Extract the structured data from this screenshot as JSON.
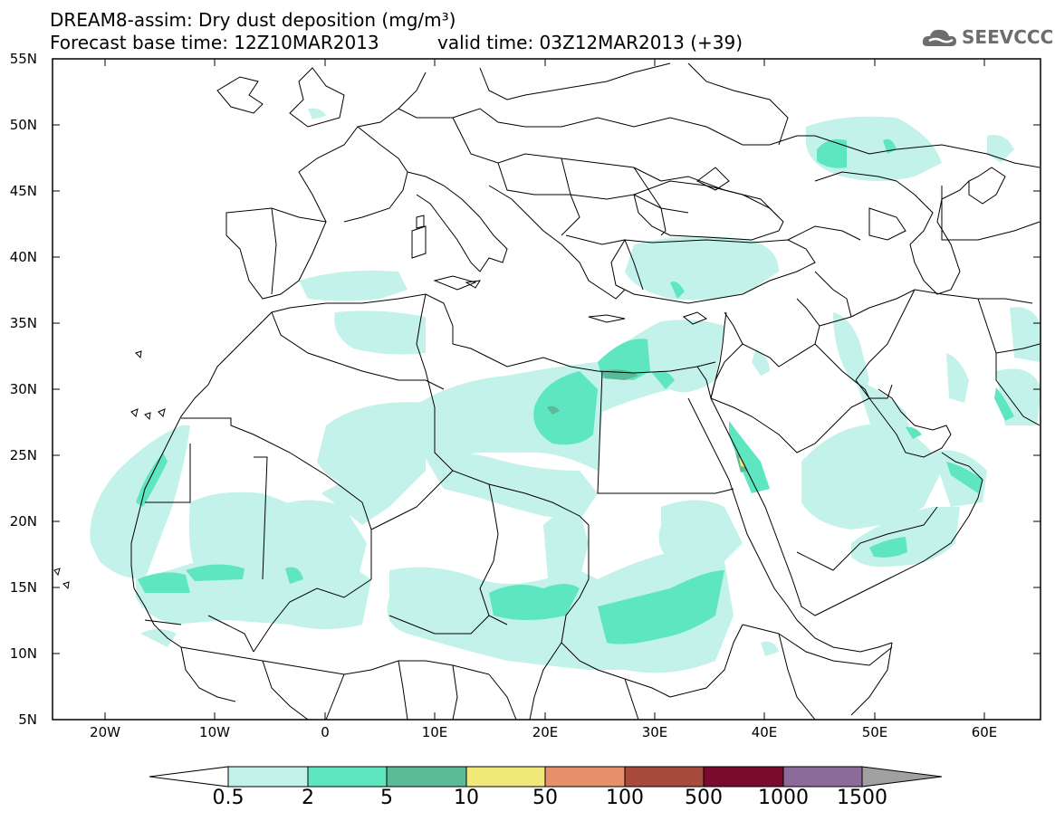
{
  "title": {
    "line1": "DREAM8-assim: Dry dust deposition (mg/m³)",
    "line2": "Forecast base time: 12Z10MAR2013",
    "valid": "valid time: 03Z12MAR2013 (+39)"
  },
  "logo": {
    "text": "SEEVCCC",
    "icon": "cloud-logo-icon"
  },
  "axes": {
    "lat_labels": [
      "55N",
      "50N",
      "45N",
      "40N",
      "35N",
      "30N",
      "25N",
      "20N",
      "15N",
      "10N",
      "5N"
    ],
    "lon_labels": [
      "20W",
      "10W",
      "0",
      "10E",
      "20E",
      "30E",
      "40E",
      "50E",
      "60E"
    ]
  },
  "colorbar": {
    "labels": [
      "0.5",
      "2",
      "5",
      "10",
      "50",
      "100",
      "500",
      "1000",
      "1500"
    ],
    "colors": [
      "#c3f2ea",
      "#5ee6c0",
      "#5bba98",
      "#f0e878",
      "#e8906a",
      "#a84a3e",
      "#7a0a2e",
      "#8c6a9a"
    ],
    "under_color": "#ffffff",
    "over_color": "#a0a0a0"
  },
  "colors": {
    "low": "#c3f2ea",
    "mid": "#5ee6c0",
    "high": "#5bba98",
    "peak": "#f0e878",
    "border": "#000000"
  }
}
